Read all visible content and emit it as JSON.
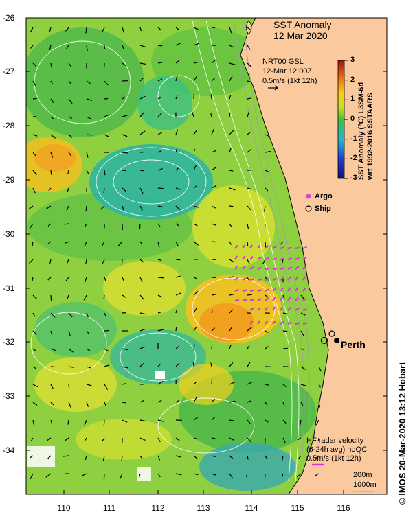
{
  "map": {
    "title_line1": "SST Anomaly",
    "title_line2": "12 Mar 2020",
    "info_line1": "NRT00 GSL",
    "info_line2": "12-Mar 12:00Z",
    "info_line3": "0.5m/s (1kt 12h)",
    "colorbar_label_line1": "SST Anomaly (°C) L3SM-6d",
    "colorbar_label_line2": "wrt 1992-2016 SSTAARS",
    "colorbar_ticks": [
      "3",
      "2",
      "1",
      "0",
      "-1",
      "-2",
      "-3"
    ],
    "colorbar_range": [
      -3,
      3
    ],
    "legend_argo": "Argo",
    "legend_ship": "Ship",
    "city_label": "Perth",
    "hf_line1": "HF radar velocity",
    "hf_line2": "(6-24h avg) noQC",
    "hf_line3": "0.5m/s (1kt 12h)",
    "contour_label_1": "200m",
    "contour_label_2": "1000m",
    "credit": "© IMOS 20-Mar-2020 13:12 Hobart",
    "lat_ticks": [
      "-26",
      "-27",
      "-28",
      "-29",
      "-30",
      "-31",
      "-32",
      "-33",
      "-34"
    ],
    "lon_ticks": [
      "110",
      "111",
      "112",
      "113",
      "114",
      "115",
      "116"
    ],
    "colors": {
      "land": "#fbc99e",
      "anomaly_pos": "#f6a21c",
      "anomaly_zero": "#c6e02a",
      "anomaly_neg": "#2fb59a",
      "argo": "#e040e0",
      "hf_arrows": "#e030e0"
    }
  }
}
